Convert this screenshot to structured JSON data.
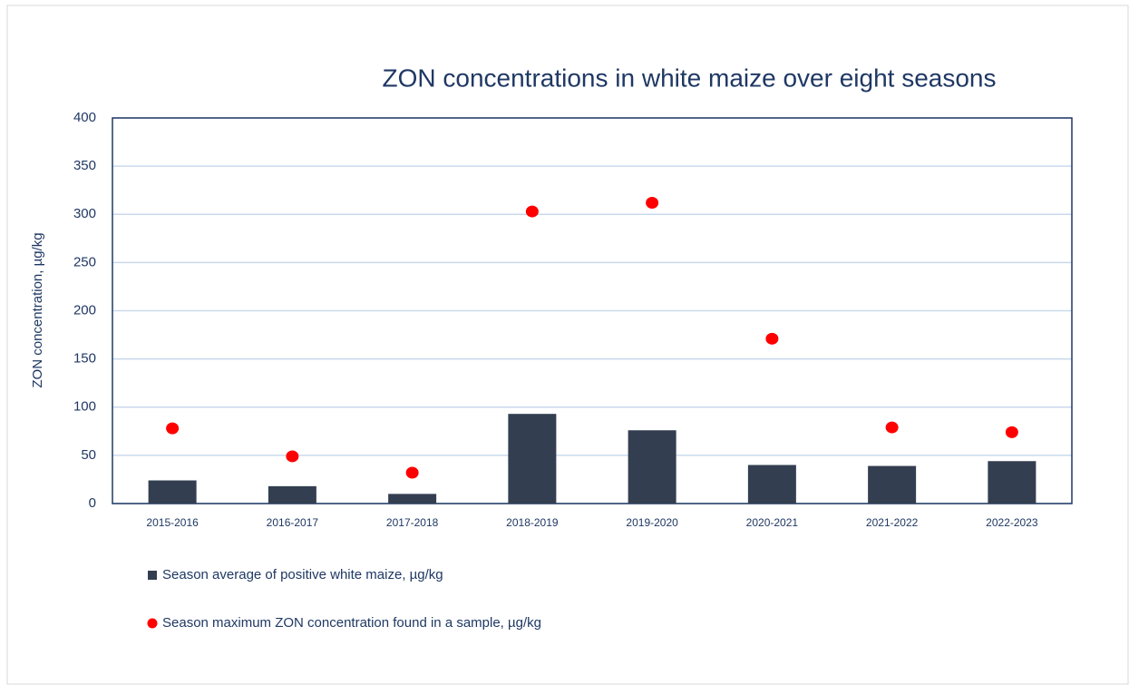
{
  "chart_data": {
    "type": "bar",
    "title": "ZON concentrations in white maize over eight seasons",
    "y_label": "ZON concentration, µg/kg",
    "categories": [
      "2015-2016",
      "2016-2017",
      "2017-2018",
      "2018-2019",
      "2019-2020",
      "2020-2021",
      "2021-2022",
      "2022-2023"
    ],
    "series": [
      {
        "name": "Season average of positive white maize, µg/kg",
        "type": "bar",
        "color": "#333f50",
        "values": [
          24,
          18,
          10,
          93,
          76,
          40,
          39,
          44
        ]
      },
      {
        "name": "Season maximum ZON concentration found in a sample, µg/kg",
        "type": "scatter",
        "color": "#ff0000",
        "values": [
          78,
          49,
          32,
          303,
          312,
          171,
          79,
          74
        ]
      }
    ],
    "ylim": [
      0,
      400
    ],
    "yticks": [
      0,
      50,
      100,
      150,
      200,
      250,
      300,
      350,
      400
    ],
    "grid": true,
    "legend": "bottom"
  }
}
